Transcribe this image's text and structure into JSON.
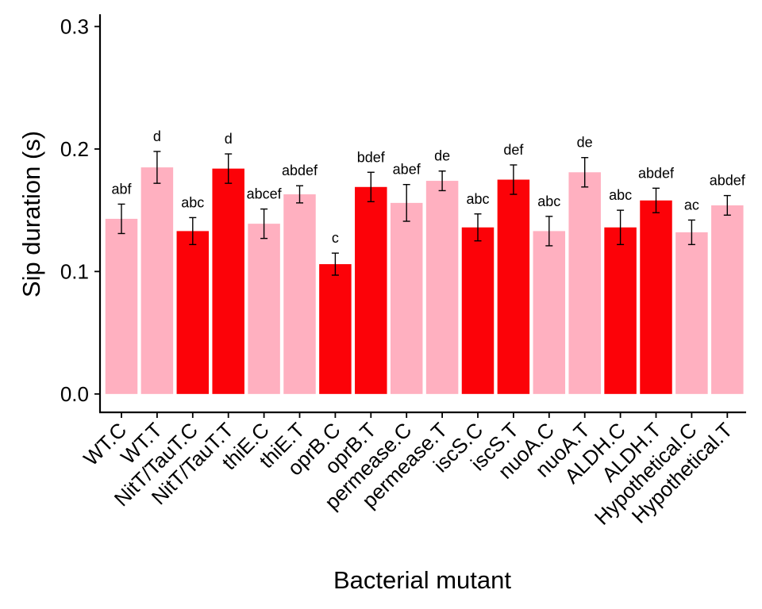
{
  "chart_data": {
    "type": "bar",
    "title": "",
    "xlabel": "Bacterial mutant",
    "ylabel": "Sip duration (s)",
    "ylim": [
      -0.015,
      0.31
    ],
    "yticks": [
      0.0,
      0.1,
      0.2,
      0.3
    ],
    "ytick_labels": [
      "0.0",
      "0.1",
      "0.2",
      "0.3"
    ],
    "grid": false,
    "legend": "none",
    "colors": {
      "C": "#ffb0c0",
      "T": "#fc0208",
      "error_bar": "#000000",
      "axis": "#000000"
    },
    "categories": [
      "WT.C",
      "WT.T",
      "NitT/TauT.C",
      "NitT/TauT.T",
      "thiE.C",
      "thiE.T",
      "oprB.C",
      "oprB.T",
      "permease.C",
      "permease.T",
      "iscS.C",
      "iscS.T",
      "nuoA.C",
      "nuoA.T",
      "ALDH.C",
      "ALDH.T",
      "Hypothetical.C",
      "Hypothetical.T"
    ],
    "values": [
      0.143,
      0.185,
      0.133,
      0.184,
      0.139,
      0.163,
      0.106,
      0.169,
      0.156,
      0.174,
      0.136,
      0.175,
      0.133,
      0.181,
      0.136,
      0.158,
      0.132,
      0.154
    ],
    "errors": [
      0.012,
      0.013,
      0.011,
      0.012,
      0.012,
      0.007,
      0.009,
      0.012,
      0.015,
      0.008,
      0.011,
      0.012,
      0.012,
      0.012,
      0.014,
      0.01,
      0.01,
      0.008
    ],
    "bar_colors": [
      "#ffb0c0",
      "#ffb0c0",
      "#fc0208",
      "#fc0208",
      "#ffb0c0",
      "#ffb0c0",
      "#fc0208",
      "#fc0208",
      "#ffb0c0",
      "#ffb0c0",
      "#fc0208",
      "#fc0208",
      "#ffb0c0",
      "#ffb0c0",
      "#fc0208",
      "#fc0208",
      "#ffb0c0",
      "#ffb0c0"
    ],
    "annotations": [
      "abf",
      "d",
      "abc",
      "d",
      "abcef",
      "abdef",
      "c",
      "bdef",
      "abef",
      "de",
      "abc",
      "def",
      "abc",
      "de",
      "abc",
      "abdef",
      "ac",
      "abdef"
    ]
  }
}
